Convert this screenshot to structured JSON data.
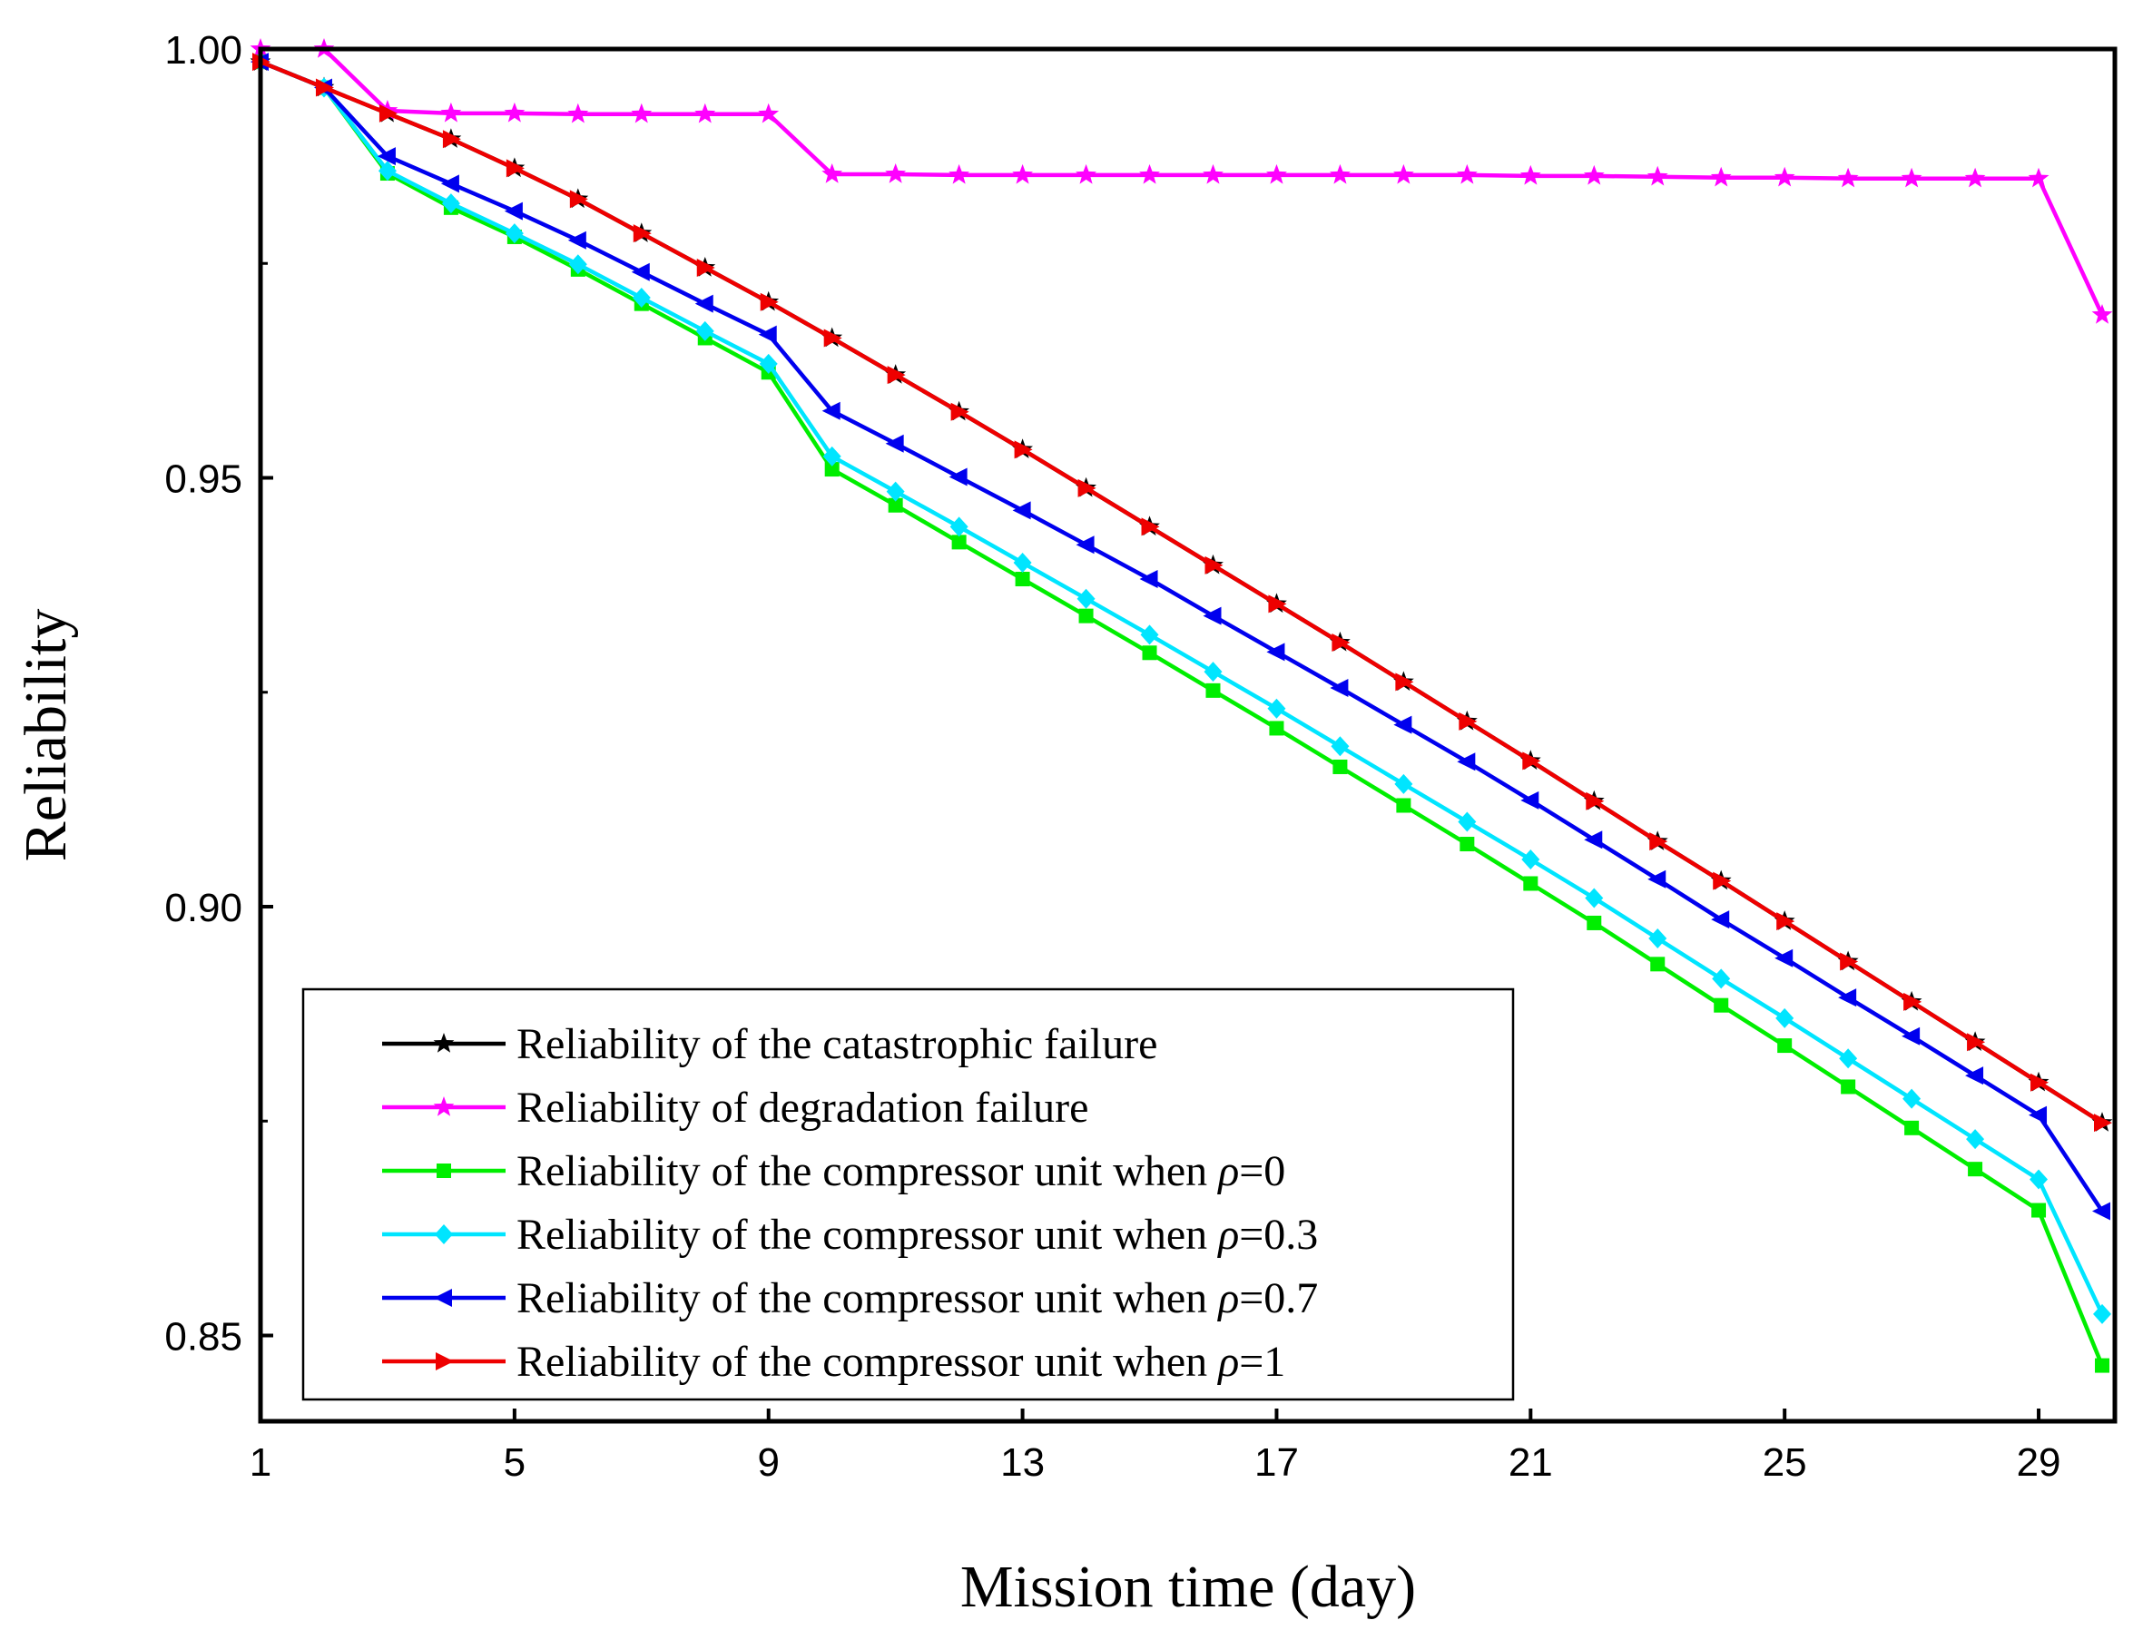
{
  "chart_data": {
    "type": "line",
    "title": "",
    "xlabel": "Mission time (day)",
    "ylabel": "Reliability",
    "xlim": [
      1,
      30.2
    ],
    "ylim": [
      0.84,
      1.0
    ],
    "xticks": [
      1,
      5,
      9,
      13,
      17,
      21,
      25,
      29
    ],
    "xtick_labels": [
      "1",
      "5",
      "9",
      "13",
      "17",
      "21",
      "25",
      "29"
    ],
    "yticks": [
      0.85,
      0.9,
      0.95,
      1.0
    ],
    "ytick_labels": [
      "0.85",
      "0.90",
      "0.95",
      "1.00"
    ],
    "y_minor_ticks": [
      0.875,
      0.925,
      0.975
    ],
    "grid": false,
    "legend_position": "bottom-left",
    "x": [
      1,
      2,
      3,
      4,
      5,
      6,
      7,
      8,
      9,
      10,
      11,
      12,
      13,
      14,
      15,
      16,
      17,
      18,
      19,
      20,
      21,
      22,
      23,
      24,
      25,
      26,
      27,
      28,
      29,
      30
    ],
    "series": [
      {
        "name": "Reliability of the catastrophic failure",
        "legend_label": "Reliability of the catastrophic failure",
        "color": "#000000",
        "marker": "star",
        "values": [
          0.9985,
          0.9955,
          0.9925,
          0.9895,
          0.9861,
          0.9825,
          0.9785,
          0.9745,
          0.9705,
          0.9663,
          0.962,
          0.9577,
          0.9533,
          0.9488,
          0.9443,
          0.9398,
          0.9353,
          0.9308,
          0.9262,
          0.9216,
          0.917,
          0.9123,
          0.9076,
          0.903,
          0.8983,
          0.8936,
          0.8889,
          0.8842,
          0.8795,
          0.8748
        ]
      },
      {
        "name": "Reliability of degradation failure",
        "legend_label": "Reliability of degradation failure",
        "color": "#ff00ff",
        "marker": "star",
        "values": [
          1.0,
          1.0,
          0.9928,
          0.9925,
          0.9925,
          0.9924,
          0.9924,
          0.9924,
          0.9924,
          0.9854,
          0.9854,
          0.9853,
          0.9853,
          0.9853,
          0.9853,
          0.9853,
          0.9853,
          0.9853,
          0.9853,
          0.9853,
          0.9852,
          0.9852,
          0.9851,
          0.985,
          0.985,
          0.9849,
          0.9849,
          0.9849,
          0.9849,
          0.969
        ]
      },
      {
        "name": "Reliability of the compressor unit when ρ=0",
        "legend_prefix": "Reliability of the compressor unit when ",
        "legend_symbol": "ρ",
        "legend_suffix": "=0",
        "color": "#00ee00",
        "marker": "square",
        "values": [
          0.9985,
          0.9955,
          0.9855,
          0.9815,
          0.9781,
          0.9743,
          0.9703,
          0.9663,
          0.9623,
          0.951,
          0.9468,
          0.9425,
          0.9382,
          0.9339,
          0.9296,
          0.9252,
          0.9208,
          0.9163,
          0.9118,
          0.9073,
          0.9027,
          0.8981,
          0.8933,
          0.8885,
          0.8838,
          0.879,
          0.8742,
          0.8694,
          0.8646,
          0.8465
        ]
      },
      {
        "name": "Reliability of the compressor unit when ρ=0.3",
        "legend_prefix": "Reliability of the compressor unit when ",
        "legend_symbol": "ρ",
        "legend_suffix": "=0.3",
        "color": "#00e5ff",
        "marker": "diamond",
        "values": [
          0.9985,
          0.9955,
          0.9858,
          0.982,
          0.9785,
          0.9749,
          0.971,
          0.9671,
          0.9633,
          0.9525,
          0.9484,
          0.9443,
          0.9401,
          0.9359,
          0.9317,
          0.9274,
          0.9231,
          0.9187,
          0.9143,
          0.9099,
          0.9055,
          0.901,
          0.8963,
          0.8916,
          0.887,
          0.8823,
          0.8776,
          0.8729,
          0.8682,
          0.8525
        ]
      },
      {
        "name": "Reliability of the compressor unit when ρ=0.7",
        "legend_prefix": "Reliability of the compressor unit when ",
        "legend_symbol": "ρ",
        "legend_suffix": "=0.7",
        "color": "#0000ee",
        "marker": "triangle-left",
        "values": [
          0.9985,
          0.9955,
          0.9875,
          0.9843,
          0.9811,
          0.9777,
          0.974,
          0.9703,
          0.9667,
          0.9578,
          0.954,
          0.9501,
          0.9462,
          0.9422,
          0.9382,
          0.9339,
          0.9297,
          0.9255,
          0.9212,
          0.9169,
          0.9124,
          0.9078,
          0.9032,
          0.8985,
          0.894,
          0.8894,
          0.8849,
          0.8803,
          0.8757,
          0.8645
        ]
      },
      {
        "name": "Reliability of the compressor unit when ρ=1",
        "legend_prefix": "Reliability of the compressor unit when ",
        "legend_symbol": "ρ",
        "legend_suffix": "=1",
        "color": "#ee0000",
        "marker": "triangle-right",
        "values": [
          0.9985,
          0.9955,
          0.9925,
          0.9895,
          0.9861,
          0.9825,
          0.9785,
          0.9745,
          0.9705,
          0.9663,
          0.962,
          0.9577,
          0.9533,
          0.9488,
          0.9443,
          0.9398,
          0.9353,
          0.9308,
          0.9262,
          0.9216,
          0.917,
          0.9123,
          0.9076,
          0.903,
          0.8983,
          0.8936,
          0.8889,
          0.8842,
          0.8795,
          0.8748
        ]
      }
    ]
  }
}
